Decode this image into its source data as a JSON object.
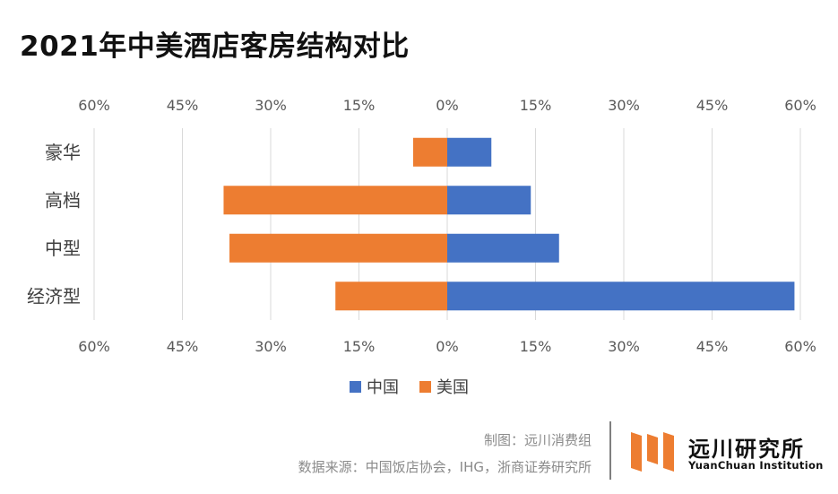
{
  "title": "2021年中美酒店客房结构对比",
  "chart_data": {
    "type": "bar",
    "orientation": "horizontal",
    "layout": "diverging",
    "categories": [
      "豪华",
      "高档",
      "中型",
      "经济型"
    ],
    "series": [
      {
        "name": "中国",
        "side": "right",
        "color": "#4472C4",
        "values": [
          7.5,
          14.2,
          19.0,
          59.0
        ]
      },
      {
        "name": "美国",
        "side": "left",
        "color": "#ED7D31",
        "values": [
          5.8,
          38.0,
          37.0,
          19.0
        ]
      }
    ],
    "xlim": [
      -60,
      60
    ],
    "ticks": [
      "60%",
      "45%",
      "30%",
      "15%",
      "0%",
      "15%",
      "30%",
      "45%",
      "60%"
    ],
    "tick_values": [
      -60,
      -45,
      -30,
      -15,
      0,
      15,
      30,
      45,
      60
    ],
    "grid": true,
    "legend": "bottom"
  },
  "footer": {
    "maker": "制图：远川消费组",
    "source": "数据来源：中国饭店协会，IHG，浙商证券研究所"
  },
  "logo": {
    "name": "远川研究所",
    "subtitle": "YuanChuan Institution"
  }
}
